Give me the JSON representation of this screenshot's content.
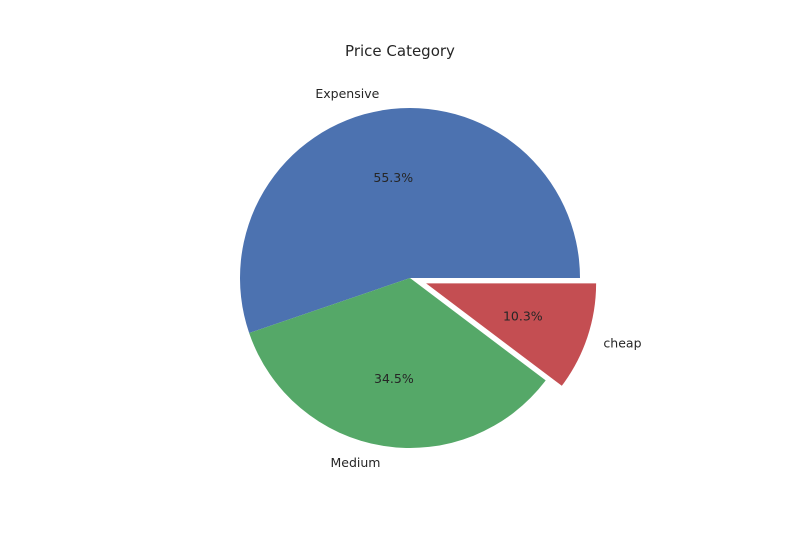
{
  "chart_data": {
    "type": "pie",
    "title": "Price Category",
    "categories": [
      "Expensive",
      "Medium",
      "cheap"
    ],
    "values": [
      55.3,
      34.5,
      10.3
    ],
    "value_labels": [
      "55.3%",
      "34.5%",
      "10.3%"
    ],
    "explode": [
      0,
      0,
      0.1
    ],
    "start_angle_deg": 0,
    "direction": "counterclockwise",
    "colors": [
      "#4C72B0",
      "#55A868",
      "#C44E52"
    ],
    "legend": false
  }
}
